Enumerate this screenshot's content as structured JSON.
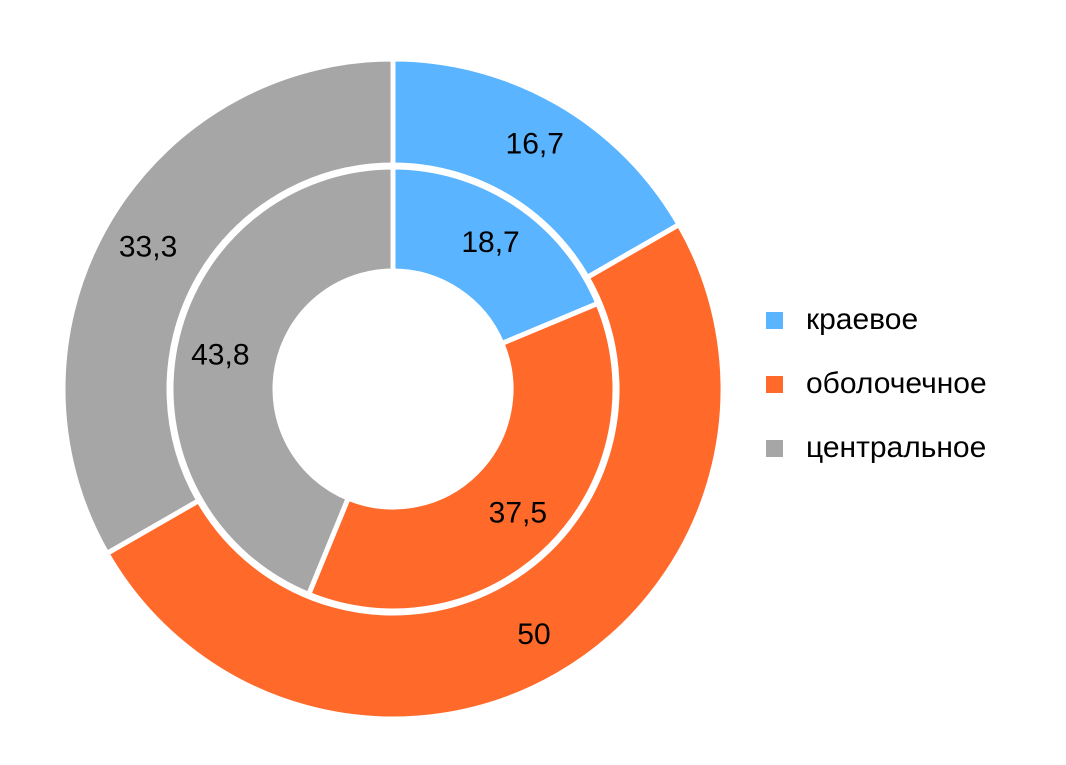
{
  "chart_data": {
    "type": "pie",
    "variant": "double-doughnut",
    "categories": [
      "краевое",
      "оболочечное",
      "центральное"
    ],
    "colors": [
      "#5AB4FF",
      "#FF6A2B",
      "#A6A6A6"
    ],
    "series": [
      {
        "ring": "outer",
        "values": [
          16.7,
          50,
          33.3
        ],
        "labels": [
          "16,7",
          "50",
          "33,3"
        ]
      },
      {
        "ring": "inner",
        "values": [
          18.7,
          37.5,
          43.8
        ],
        "labels": [
          "18,7",
          "37,5",
          "43,8"
        ]
      }
    ],
    "legend": {
      "position": "right"
    }
  }
}
